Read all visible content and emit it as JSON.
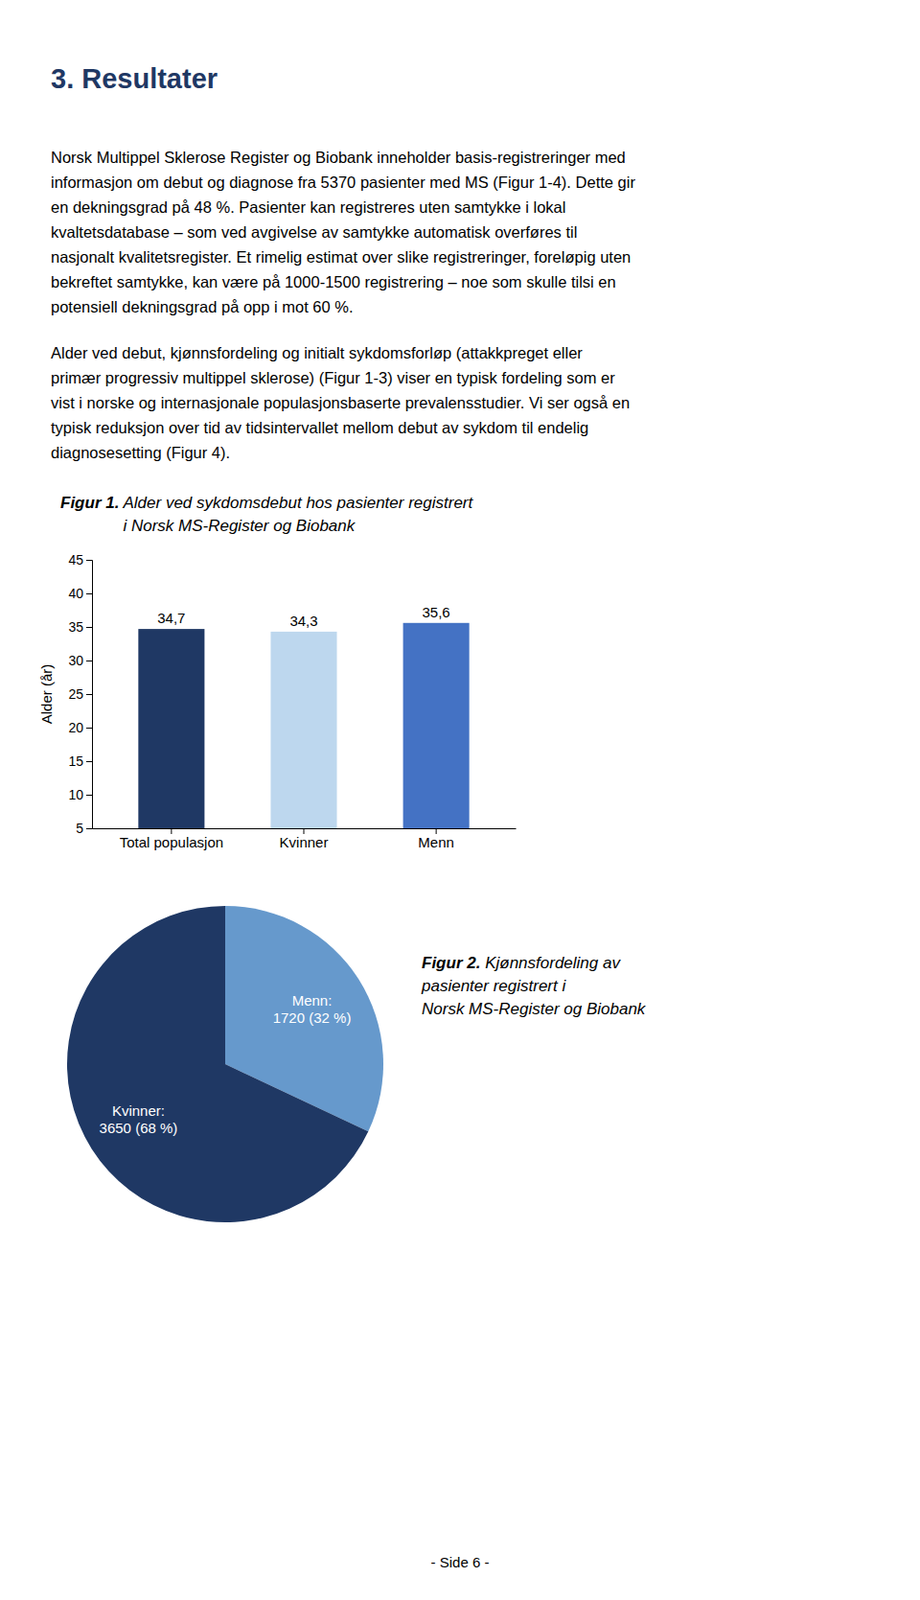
{
  "page": {
    "title": "3. Resultater",
    "title_color": "#1F3864",
    "paragraphs": [
      [
        "Norsk Multippel Sklerose Register og Biobank inneholder basis-registreringer med",
        "informasjon om debut og diagnose fra 5370 pasienter med MS (Figur 1-4). Dette gir",
        "en dekningsgrad på 48 %. Pasienter kan registreres uten samtykke i lokal",
        "kvaltetsdatabase – som ved avgivelse av samtykke automatisk overføres til",
        "nasjonalt kvalitetsregister. Et rimelig estimat over slike registreringer, foreløpig uten",
        "bekreftet samtykke, kan være på 1000-1500 registrering – noe som skulle tilsi en",
        "potensiell dekningsgrad på opp i mot 60 %."
      ],
      [
        "Alder ved debut, kjønnsfordeling og initialt sykdomsforløp (attakkpreget eller",
        "primær progressiv multippel sklerose) (Figur 1-3) viser en typisk fordeling som er",
        "vist i norske og internasjonale populasjonsbaserte prevalensstudier. Vi ser også en",
        "typisk reduksjon over tid av tidsintervallet mellom debut av sykdom til endelig",
        "diagnosesetting (Figur 4)."
      ]
    ],
    "footer": "- Side 6 -"
  },
  "chart_data": [
    {
      "type": "bar",
      "figure_label": "Figur 1.",
      "title": [
        " Alder ved sykdomsdebut hos pasienter registrert",
        "i Norsk MS-Register og Biobank"
      ],
      "categories": [
        "Total populasjon",
        "Kvinner",
        "Menn"
      ],
      "values": [
        34.7,
        34.3,
        35.6
      ],
      "value_labels": [
        "34,7",
        "34,3",
        "35,6"
      ],
      "colors": [
        "#1F3864",
        "#BDD7EE",
        "#4472C4"
      ],
      "ylabel": "Alder (år)",
      "ylim": [
        5,
        45
      ],
      "yticks": [
        5,
        10,
        15,
        20,
        25,
        30,
        35,
        40,
        45
      ],
      "data_labels": true,
      "grid": false
    },
    {
      "type": "pie",
      "figure_label": "Figur 2.",
      "title": [
        " Kjønnsfordeling av",
        "pasienter registrert i",
        "Norsk MS-Register og Biobank"
      ],
      "values": [
        32,
        68
      ],
      "value_labels": [
        "Menn:\n1720 (32 %)",
        "Kvinner:\n3650 (68 %)"
      ],
      "colors": [
        "#6699CC",
        "#1F3864"
      ],
      "data_labels": true
    }
  ]
}
